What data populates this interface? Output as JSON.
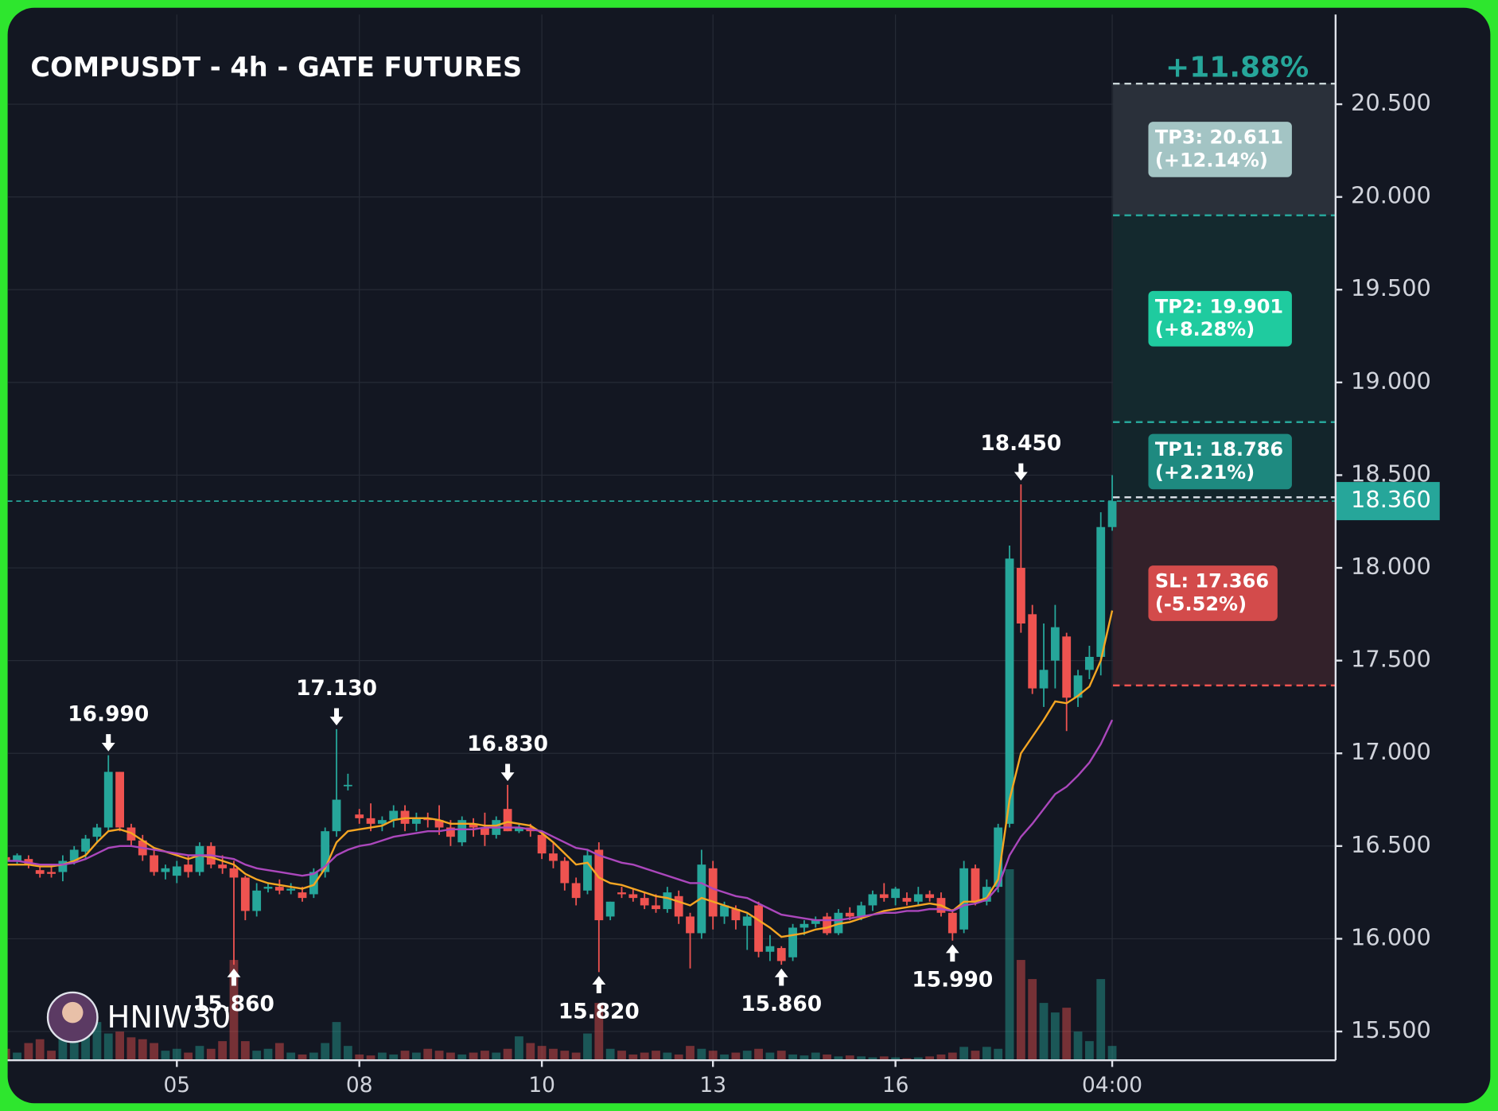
{
  "chart_data": {
    "type": "candlestick",
    "title": "COMPUSDT - 4h - GATE FUTURES",
    "change_label": "+11.88%",
    "watermark": "HNIW30",
    "categories": [
      null,
      null,
      null,
      null,
      null,
      null,
      null,
      null,
      null,
      null,
      null,
      null,
      null,
      null,
      null,
      "05",
      null,
      null,
      null,
      null,
      null,
      null,
      null,
      null,
      null,
      null,
      null,
      null,
      null,
      null,
      null,
      "08",
      null,
      null,
      null,
      null,
      null,
      null,
      null,
      null,
      null,
      null,
      null,
      null,
      null,
      null,
      null,
      "10",
      null,
      null,
      null,
      null,
      null,
      null,
      null,
      null,
      null,
      null,
      null,
      null,
      null,
      null,
      "13",
      null,
      null,
      null,
      null,
      null,
      null,
      null,
      null,
      null,
      null,
      null,
      null,
      null,
      null,
      null,
      "16",
      null,
      null,
      null,
      null,
      null,
      null,
      null,
      null,
      null,
      null,
      null,
      null,
      null,
      null,
      null,
      null,
      null,
      null,
      "04:00"
    ],
    "open": [
      16.44,
      16.42,
      16.43,
      16.37,
      16.36,
      16.36,
      16.42,
      16.47,
      16.55,
      16.6,
      16.9,
      16.6,
      16.53,
      16.45,
      16.36,
      16.34,
      16.4,
      16.36,
      16.5,
      16.4,
      16.38,
      16.33,
      16.15,
      16.27,
      16.28,
      16.26,
      16.25,
      16.24,
      16.36,
      16.58,
      16.83,
      16.67,
      16.65,
      16.62,
      16.64,
      16.69,
      16.62,
      16.65,
      16.64,
      16.6,
      16.52,
      16.62,
      16.6,
      16.56,
      16.7,
      16.58,
      16.6,
      16.56,
      16.46,
      16.42,
      16.3,
      16.26,
      16.48,
      16.12,
      16.25,
      16.24,
      16.22,
      16.18,
      16.16,
      16.23,
      16.12,
      16.03,
      16.38,
      16.12,
      16.16,
      16.07,
      16.18,
      15.93,
      15.95,
      15.9,
      16.06,
      16.08,
      16.12,
      16.03,
      16.14,
      16.12,
      16.18,
      16.24,
      16.22,
      16.22,
      16.2,
      16.24,
      16.22,
      16.14,
      16.05,
      16.38,
      16.2,
      16.28,
      16.62,
      18.0,
      17.75,
      17.35,
      17.5,
      17.63,
      17.3,
      17.45,
      17.52,
      18.22
    ],
    "high": [
      16.47,
      16.46,
      16.45,
      16.39,
      16.4,
      16.45,
      16.5,
      16.56,
      16.62,
      16.99,
      16.9,
      16.62,
      16.56,
      16.48,
      16.4,
      16.42,
      16.45,
      16.52,
      16.52,
      16.45,
      16.42,
      16.34,
      16.3,
      16.3,
      16.32,
      16.3,
      16.28,
      16.38,
      16.6,
      17.13,
      16.89,
      16.7,
      16.73,
      16.66,
      16.72,
      16.72,
      16.68,
      16.68,
      16.72,
      16.64,
      16.66,
      16.65,
      16.68,
      16.66,
      16.83,
      16.62,
      16.62,
      16.58,
      16.52,
      16.44,
      16.33,
      16.48,
      16.52,
      16.2,
      16.28,
      16.27,
      16.25,
      16.24,
      16.28,
      16.26,
      16.14,
      16.48,
      16.42,
      16.2,
      16.18,
      16.14,
      16.2,
      16.02,
      15.96,
      16.08,
      16.1,
      16.12,
      16.14,
      16.16,
      16.17,
      16.2,
      16.26,
      16.3,
      16.28,
      16.25,
      16.28,
      16.26,
      16.25,
      16.16,
      16.42,
      16.4,
      16.32,
      16.62,
      18.12,
      18.45,
      17.8,
      17.7,
      17.8,
      17.65,
      17.45,
      17.58,
      18.3,
      18.5
    ],
    "low": [
      16.4,
      16.4,
      16.38,
      16.33,
      16.33,
      16.31,
      16.4,
      16.43,
      16.52,
      16.58,
      16.58,
      16.5,
      16.42,
      16.34,
      16.32,
      16.3,
      16.33,
      16.34,
      16.38,
      16.35,
      15.86,
      16.1,
      16.12,
      16.25,
      16.24,
      16.24,
      16.2,
      16.22,
      16.33,
      16.55,
      16.8,
      16.62,
      16.58,
      16.58,
      16.6,
      16.58,
      16.58,
      16.6,
      16.56,
      16.5,
      16.5,
      16.55,
      16.5,
      16.54,
      16.58,
      16.57,
      16.55,
      16.43,
      16.38,
      16.26,
      16.18,
      16.24,
      15.82,
      16.1,
      16.22,
      16.2,
      16.16,
      16.14,
      16.14,
      16.08,
      15.84,
      16.0,
      16.05,
      16.08,
      16.05,
      15.94,
      15.9,
      15.88,
      15.86,
      15.88,
      16.02,
      16.06,
      16.02,
      16.02,
      16.1,
      16.1,
      16.15,
      16.2,
      16.18,
      16.18,
      16.18,
      16.2,
      16.12,
      15.99,
      16.03,
      16.18,
      16.18,
      16.25,
      16.6,
      17.65,
      17.32,
      17.25,
      17.35,
      17.12,
      17.25,
      17.4,
      17.42,
      18.2
    ],
    "close": [
      16.42,
      16.45,
      16.4,
      16.35,
      16.35,
      16.42,
      16.48,
      16.54,
      16.6,
      16.9,
      16.6,
      16.53,
      16.45,
      16.36,
      16.38,
      16.39,
      16.36,
      16.5,
      16.4,
      16.38,
      16.33,
      16.15,
      16.26,
      16.28,
      16.26,
      16.27,
      16.22,
      16.36,
      16.58,
      16.75,
      16.83,
      16.65,
      16.62,
      16.64,
      16.69,
      16.62,
      16.65,
      16.64,
      16.6,
      16.55,
      16.64,
      16.6,
      16.56,
      16.64,
      16.58,
      16.6,
      16.58,
      16.46,
      16.42,
      16.3,
      16.22,
      16.45,
      16.1,
      16.2,
      16.24,
      16.22,
      16.18,
      16.16,
      16.25,
      16.12,
      16.03,
      16.4,
      16.12,
      16.18,
      16.1,
      16.12,
      15.93,
      15.96,
      15.88,
      16.06,
      16.08,
      16.1,
      16.03,
      16.14,
      16.12,
      16.18,
      16.24,
      16.22,
      16.27,
      16.2,
      16.24,
      16.22,
      16.14,
      16.03,
      16.38,
      16.2,
      16.28,
      16.6,
      18.05,
      17.7,
      17.35,
      17.45,
      17.68,
      17.3,
      17.42,
      17.52,
      18.22,
      18.36
    ],
    "volume": [
      12,
      8,
      18,
      22,
      10,
      25,
      30,
      35,
      40,
      28,
      30,
      24,
      22,
      18,
      10,
      12,
      8,
      15,
      12,
      20,
      105,
      20,
      10,
      12,
      18,
      8,
      6,
      8,
      18,
      40,
      15,
      6,
      5,
      8,
      6,
      10,
      8,
      12,
      10,
      8,
      6,
      8,
      10,
      8,
      12,
      25,
      18,
      15,
      12,
      10,
      8,
      28,
      60,
      12,
      10,
      6,
      8,
      10,
      8,
      6,
      15,
      12,
      10,
      6,
      8,
      10,
      12,
      8,
      10,
      6,
      5,
      8,
      6,
      4,
      5,
      4,
      3,
      4,
      3,
      2,
      3,
      4,
      6,
      8,
      14,
      10,
      14,
      12,
      200,
      105,
      85,
      60,
      50,
      55,
      30,
      20,
      85,
      15
    ],
    "high_labels": [
      null,
      null,
      null,
      null,
      null,
      null,
      null,
      null,
      null,
      "16.990",
      null,
      null,
      null,
      null,
      null,
      null,
      null,
      null,
      null,
      null,
      null,
      null,
      null,
      null,
      null,
      null,
      null,
      null,
      null,
      "17.130",
      null,
      null,
      null,
      null,
      null,
      null,
      null,
      null,
      null,
      null,
      null,
      null,
      null,
      null,
      "16.830",
      null,
      null,
      null,
      null,
      null,
      null,
      null,
      null,
      null,
      null,
      null,
      null,
      null,
      null,
      null,
      null,
      null,
      null,
      null,
      null,
      null,
      null,
      null,
      null,
      null,
      null,
      null,
      null,
      null,
      null,
      null,
      null,
      null,
      null,
      null,
      null,
      null,
      null,
      null,
      null,
      null,
      null,
      null,
      null,
      "18.450",
      null,
      null,
      null,
      null,
      null,
      null,
      null,
      null
    ],
    "low_labels": [
      null,
      null,
      null,
      null,
      null,
      null,
      null,
      null,
      null,
      null,
      null,
      null,
      null,
      null,
      null,
      null,
      null,
      null,
      null,
      null,
      "15.860",
      null,
      null,
      null,
      null,
      null,
      null,
      null,
      null,
      null,
      null,
      null,
      null,
      null,
      null,
      null,
      null,
      null,
      null,
      null,
      null,
      null,
      null,
      null,
      null,
      null,
      null,
      null,
      null,
      null,
      null,
      null,
      "15.820",
      null,
      null,
      null,
      null,
      null,
      null,
      null,
      null,
      null,
      null,
      null,
      null,
      null,
      null,
      null,
      "15.860",
      null,
      null,
      null,
      null,
      null,
      null,
      null,
      null,
      null,
      null,
      null,
      null,
      null,
      null,
      "15.990",
      null,
      null,
      null,
      null,
      null,
      null,
      null,
      null,
      null,
      null,
      null,
      null,
      null,
      null
    ],
    "lines": [
      {
        "color": "#f5a623",
        "values": [
          16.4,
          16.4,
          16.4,
          16.39,
          16.39,
          16.4,
          16.42,
          16.45,
          16.52,
          16.58,
          16.59,
          16.57,
          16.53,
          16.49,
          16.47,
          16.45,
          16.43,
          16.45,
          16.44,
          16.42,
          16.4,
          16.35,
          16.32,
          16.3,
          16.29,
          16.28,
          16.27,
          16.29,
          16.38,
          16.52,
          16.58,
          16.59,
          16.6,
          16.61,
          16.64,
          16.65,
          16.65,
          16.65,
          16.64,
          16.62,
          16.62,
          16.62,
          16.61,
          16.61,
          16.63,
          16.62,
          16.61,
          16.57,
          16.52,
          16.46,
          16.4,
          16.41,
          16.33,
          16.3,
          16.29,
          16.27,
          16.25,
          16.23,
          16.22,
          16.2,
          16.18,
          16.22,
          16.2,
          16.18,
          16.16,
          16.14,
          16.1,
          16.06,
          16.01,
          16.02,
          16.03,
          16.05,
          16.06,
          16.08,
          16.09,
          16.11,
          16.13,
          16.15,
          16.16,
          16.17,
          16.18,
          16.19,
          16.18,
          16.15,
          16.2,
          16.2,
          16.22,
          16.32,
          16.75,
          17.0,
          17.09,
          17.18,
          17.28,
          17.27,
          17.31,
          17.36,
          17.5,
          17.77
        ]
      },
      {
        "color": "#ab47bc",
        "values": [
          16.42,
          16.42,
          16.41,
          16.4,
          16.4,
          16.4,
          16.41,
          16.43,
          16.46,
          16.49,
          16.5,
          16.5,
          16.49,
          16.48,
          16.47,
          16.46,
          16.45,
          16.45,
          16.45,
          16.44,
          16.43,
          16.4,
          16.38,
          16.37,
          16.36,
          16.35,
          16.34,
          16.35,
          16.39,
          16.45,
          16.48,
          16.5,
          16.51,
          16.53,
          16.55,
          16.56,
          16.57,
          16.58,
          16.58,
          16.59,
          16.59,
          16.59,
          16.6,
          16.6,
          16.6,
          16.6,
          16.59,
          16.58,
          16.55,
          16.52,
          16.49,
          16.48,
          16.45,
          16.43,
          16.41,
          16.4,
          16.38,
          16.36,
          16.34,
          16.32,
          16.3,
          16.3,
          16.27,
          16.25,
          16.23,
          16.22,
          16.19,
          16.16,
          16.13,
          16.12,
          16.11,
          16.1,
          16.1,
          16.1,
          16.11,
          16.12,
          16.13,
          16.14,
          16.14,
          16.15,
          16.15,
          16.16,
          16.16,
          16.15,
          16.18,
          16.19,
          16.21,
          16.28,
          16.45,
          16.55,
          16.62,
          16.7,
          16.78,
          16.82,
          16.88,
          16.95,
          17.05,
          17.18
        ]
      }
    ],
    "up_color": "#26a69a",
    "down_color": "#ef5350",
    "grid": true,
    "ylim": [
      15.345,
      20.984
    ],
    "yticks": [
      {
        "value": 15.5,
        "label": "15.500"
      },
      {
        "value": 16,
        "label": "16.000"
      },
      {
        "value": 16.5,
        "label": "16.500"
      },
      {
        "value": 17,
        "label": "17.000"
      },
      {
        "value": 17.5,
        "label": "17.500"
      },
      {
        "value": 18,
        "label": "18.000"
      },
      {
        "value": 18.5,
        "label": "18.500"
      },
      {
        "value": 19,
        "label": "19.000"
      },
      {
        "value": 19.5,
        "label": "19.500"
      },
      {
        "value": 20,
        "label": "20.000"
      },
      {
        "value": 20.5,
        "label": "20.500"
      }
    ],
    "last_price": {
      "value": 18.36,
      "label": "18.360"
    },
    "levels": [
      {
        "value": 20.611,
        "label": "TP3: 20.611",
        "change": "(+12.14%)",
        "color": "#a3c4c4",
        "line_color": "#c9d6d8",
        "zone_color": "#2a303a"
      },
      {
        "value": 19.901,
        "label": "TP2: 19.901",
        "change": "(+8.28%)",
        "color": "#1fcb9f",
        "line_color": "#26a69a",
        "zone_color": "#14292e"
      },
      {
        "value": 18.786,
        "label": "TP1: 18.786",
        "change": "(+2.21%)",
        "color": "#1e8a80",
        "line_color": "#26a69a",
        "zone_color": "#13252b"
      },
      {
        "value": 17.366,
        "label": "SL: 17.366",
        "change": "(-5.52%)",
        "color": "#d34b4b",
        "line_color": "#ef5350",
        "zone_color": "#33212a"
      }
    ]
  }
}
